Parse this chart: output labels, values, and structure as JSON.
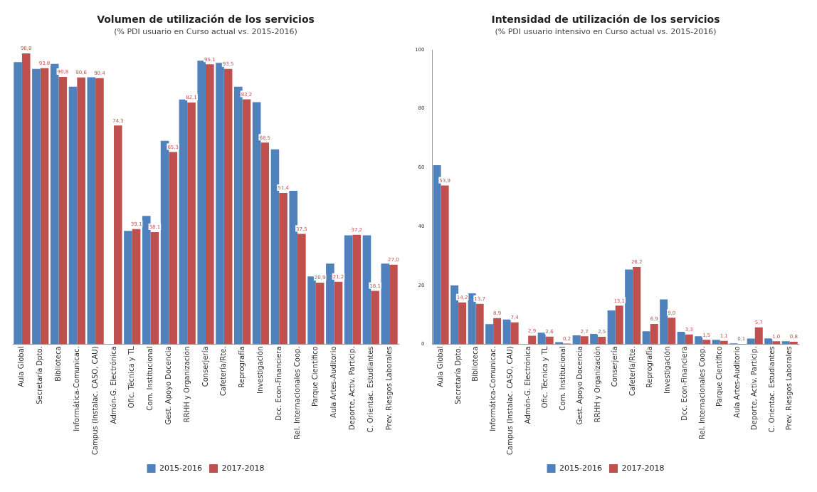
{
  "chart_data": [
    {
      "type": "bar",
      "title": "Volumen de utilización de los servicios",
      "subtitle": "(% PDI usuario en Curso actual vs. 2015-2016)",
      "categories": [
        "Aula Global",
        "Secretaría Dpto.",
        "Biblioteca",
        "Informática-Comunicac.",
        "Campus (Instalac. CASO, CAU)",
        "Admón-G. Electrónica",
        "Ofic. Técnica y TL",
        "Com. Institucional",
        "Gest. Apoyo Docencia",
        "RRHH y Organización",
        "Conserjería",
        "Cafetería/Rte.",
        "Reprografía",
        "Investigación",
        "Dcc. Econ-Financiera",
        "Rel. Internacionales Coop.",
        "Parque Científico",
        "Aula Artes-Auditorio",
        "Deporte, Activ. Particip.",
        "C. Orientac. Estudiantes",
        "Prev. Riesgos Laborales"
      ],
      "series": [
        {
          "name": "2015-2016",
          "color": "#4f81bd",
          "values": [
            95.8,
            93.5,
            95.2,
            87.5,
            90.7,
            null,
            38.5,
            43.6,
            69.1,
            83.1,
            96.3,
            95.6,
            87.5,
            82.2,
            66.2,
            52.1,
            23.0,
            27.4,
            37.0,
            37.0,
            27.4
          ]
        },
        {
          "name": "2017-2018",
          "color": "#c0504d",
          "values": [
            98.8,
            93.8,
            90.8,
            90.6,
            90.4,
            74.3,
            39.1,
            38.1,
            65.3,
            82.1,
            95.1,
            93.5,
            83.2,
            68.5,
            51.4,
            37.5,
            20.9,
            21.2,
            37.2,
            18.1,
            27.0
          ],
          "value_labels": [
            "98,8",
            "93,8",
            "90,8",
            "90,6",
            "90,4",
            "74,3",
            "39,1",
            "38,1",
            "65,3",
            "82,1",
            "95,1",
            "93,5",
            "83,2",
            "68,5",
            "51,4",
            "37,5",
            "20,9",
            "21,2",
            "37,2",
            "18,1",
            "27,0"
          ]
        }
      ],
      "legend": "bottom",
      "tick_labels": "x"
    },
    {
      "type": "bar",
      "title": "Intensidad de utilización de los servicios",
      "subtitle": "(% PDI usuario intensivo en Curso actual vs. 2015-2016)",
      "categories": [
        "Aula Global",
        "Secretaría Dpto.",
        "Biblioteca",
        "Informática-Comunicac.",
        "Campus (Instalac. CASO, CAU)",
        "Admón-G. Electrónica",
        "Ofic. Técnica y TL",
        "Com. Institucional",
        "Gest. Apoyo Docencia",
        "RRHH y Organización",
        "Conserjería",
        "Cafetería/Rte.",
        "Reprografía",
        "Investigación",
        "Dcc. Econ-Financiera",
        "Rel. Internacionales Coop.",
        "Parque Científico",
        "Aula Artes-Auditorio",
        "Deporte, Activ. Particip.",
        "C. Orientac. Estudiantes",
        "Prev. Riesgos Laborales"
      ],
      "series": [
        {
          "name": "2015-2016",
          "color": "#4f81bd",
          "values": [
            60.8,
            20.0,
            17.3,
            6.8,
            8.4,
            null,
            3.9,
            0.7,
            3.0,
            3.5,
            11.5,
            25.4,
            4.4,
            15.2,
            4.2,
            2.7,
            1.5,
            0.3,
            1.9,
            2.0,
            1.0
          ]
        },
        {
          "name": "2017-2018",
          "color": "#c0504d",
          "values": [
            53.9,
            14.2,
            13.7,
            8.9,
            7.4,
            2.9,
            2.6,
            0.2,
            2.7,
            2.5,
            13.1,
            26.2,
            6.9,
            9.0,
            3.3,
            1.5,
            1.1,
            0.1,
            5.7,
            1.0,
            0.8
          ],
          "value_labels": [
            "53,9",
            "14,2",
            "13,7",
            "8,9",
            "7,4",
            "2,9",
            "2,6",
            "0,2",
            "2,7",
            "2,5",
            "13,1",
            "26,2",
            "6,9",
            "9,0",
            "3,3",
            "1,5",
            "1,1",
            "0,1",
            "5,7",
            "1,0",
            "0,8"
          ]
        }
      ],
      "ylim": [
        0,
        100
      ],
      "yticks": [
        0,
        20,
        40,
        60,
        80,
        100
      ],
      "legend": "bottom"
    }
  ]
}
